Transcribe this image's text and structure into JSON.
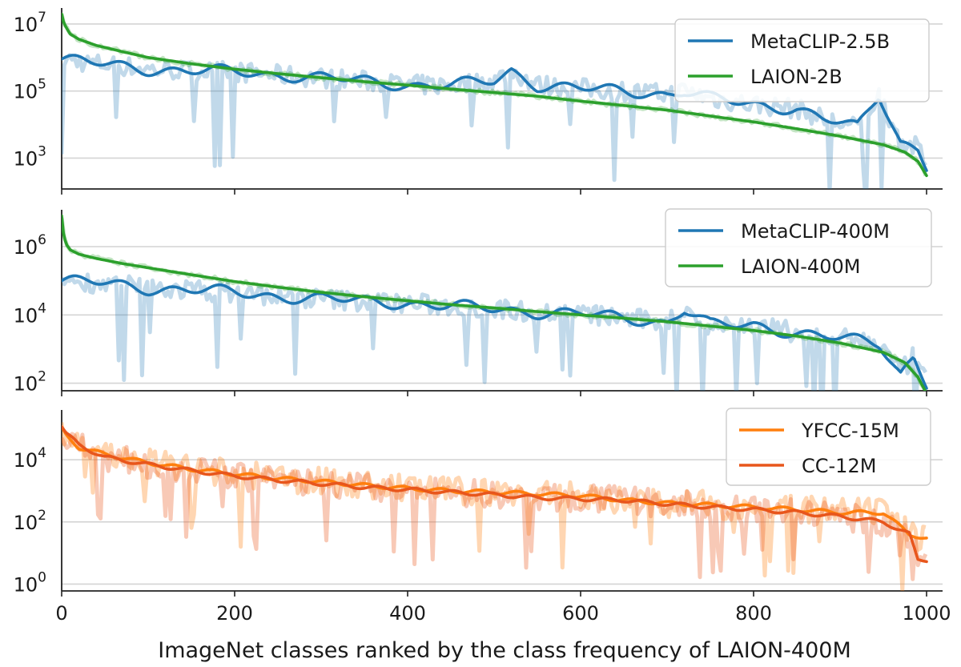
{
  "figure": {
    "xlabel": "ImageNet classes ranked by the class frequency of LAION-400M",
    "x_tick_labels": [
      "0",
      "200",
      "400",
      "600",
      "800",
      "1000"
    ]
  },
  "chart_data": [
    {
      "type": "line",
      "panel": "top",
      "y_scale": "log",
      "xlim": [
        0,
        1000
      ],
      "ylim": [
        120,
        30000000
      ],
      "y_ticks": [
        1000,
        100000,
        10000000
      ],
      "y_tick_labels": [
        {
          "base": "10",
          "exp": "3"
        },
        {
          "base": "10",
          "exp": "5"
        },
        {
          "base": "10",
          "exp": "7"
        }
      ],
      "grid": "horizontal",
      "legend": "top-right",
      "series": [
        {
          "name": "MetaCLIP-2.5B",
          "color": "#1f77b4",
          "x": [
            0,
            30,
            60,
            100,
            150,
            200,
            250,
            300,
            350,
            400,
            450,
            500,
            520,
            550,
            600,
            650,
            700,
            720,
            750,
            800,
            850,
            880,
            920,
            945,
            970,
            990,
            1000
          ],
          "values": [
            900000,
            700000,
            600000,
            450000,
            400000,
            380000,
            300000,
            250000,
            200000,
            150000,
            150000,
            200000,
            400000,
            150000,
            120000,
            100000,
            80000,
            100000,
            60000,
            40000,
            30000,
            15000,
            8000,
            80000,
            3000,
            2000,
            600
          ]
        },
        {
          "name": "LAION-2B",
          "color": "#2ca02c",
          "x": [
            0,
            2,
            5,
            10,
            20,
            40,
            70,
            100,
            150,
            200,
            250,
            300,
            350,
            400,
            450,
            500,
            550,
            600,
            650,
            700,
            750,
            800,
            850,
            900,
            950,
            975,
            990,
            1000
          ],
          "values": [
            20000000,
            12000000,
            8000000,
            5000000,
            3500000,
            2300000,
            1500000,
            1000000,
            650000,
            450000,
            330000,
            250000,
            190000,
            150000,
            115000,
            90000,
            70000,
            50000,
            37000,
            27000,
            18000,
            12000,
            7500,
            4500,
            2500,
            1500,
            800,
            300
          ]
        }
      ]
    },
    {
      "type": "line",
      "panel": "middle",
      "y_scale": "log",
      "xlim": [
        0,
        1000
      ],
      "ylim": [
        60,
        12000000
      ],
      "y_ticks": [
        100,
        10000,
        1000000
      ],
      "y_tick_labels": [
        {
          "base": "10",
          "exp": "2"
        },
        {
          "base": "10",
          "exp": "4"
        },
        {
          "base": "10",
          "exp": "6"
        }
      ],
      "grid": "horizontal",
      "legend": "top-right",
      "series": [
        {
          "name": "MetaCLIP-400M",
          "color": "#1f77b4",
          "x": [
            0,
            50,
            100,
            150,
            200,
            250,
            300,
            350,
            400,
            450,
            500,
            550,
            600,
            650,
            700,
            720,
            750,
            800,
            850,
            900,
            945,
            970,
            985,
            1000
          ],
          "values": [
            100000,
            85000,
            60000,
            55000,
            45000,
            35000,
            30000,
            25000,
            22000,
            18000,
            15000,
            12000,
            11000,
            8000,
            6000,
            15000,
            5000,
            5000,
            3000,
            2000,
            1500,
            200,
            600,
            100
          ]
        },
        {
          "name": "LAION-400M",
          "color": "#2ca02c",
          "x": [
            0,
            2,
            5,
            10,
            20,
            40,
            70,
            100,
            150,
            200,
            250,
            300,
            350,
            400,
            450,
            500,
            550,
            600,
            650,
            700,
            750,
            800,
            850,
            900,
            950,
            975,
            990,
            1000
          ],
          "values": [
            8000000,
            2500000,
            1200000,
            800000,
            600000,
            450000,
            320000,
            240000,
            150000,
            95000,
            65000,
            46000,
            34000,
            26000,
            20000,
            16000,
            12500,
            10000,
            8000,
            6300,
            4700,
            3500,
            2400,
            1500,
            800,
            400,
            150,
            50
          ]
        }
      ]
    },
    {
      "type": "line",
      "panel": "bottom",
      "y_scale": "log",
      "xlim": [
        0,
        1000
      ],
      "ylim": [
        0.6,
        400000
      ],
      "y_ticks": [
        1,
        100,
        10000
      ],
      "y_tick_labels": [
        {
          "base": "10",
          "exp": "0"
        },
        {
          "base": "10",
          "exp": "2"
        },
        {
          "base": "10",
          "exp": "4"
        }
      ],
      "grid": "horizontal",
      "legend": "top-right",
      "series": [
        {
          "name": "YFCC-15M",
          "color": "#ff7f0e",
          "x": [
            0,
            5,
            20,
            50,
            100,
            150,
            200,
            250,
            300,
            350,
            400,
            450,
            500,
            550,
            600,
            650,
            700,
            750,
            800,
            850,
            900,
            950,
            980,
            1000
          ],
          "values": [
            100000,
            60000,
            25000,
            15000,
            8000,
            5000,
            3500,
            2500,
            2000,
            1500,
            1200,
            1000,
            900,
            800,
            700,
            500,
            400,
            350,
            300,
            250,
            200,
            200,
            40,
            30
          ]
        },
        {
          "name": "CC-12M",
          "color": "#e8561c",
          "x": [
            0,
            5,
            20,
            50,
            100,
            150,
            200,
            250,
            300,
            350,
            400,
            450,
            500,
            550,
            600,
            650,
            700,
            750,
            800,
            850,
            900,
            950,
            980,
            990,
            1000
          ],
          "values": [
            120000,
            70000,
            30000,
            12000,
            7000,
            4500,
            3000,
            2200,
            1700,
            1300,
            1100,
            900,
            750,
            600,
            550,
            500,
            380,
            300,
            250,
            200,
            150,
            100,
            40,
            6,
            6
          ]
        }
      ]
    }
  ]
}
